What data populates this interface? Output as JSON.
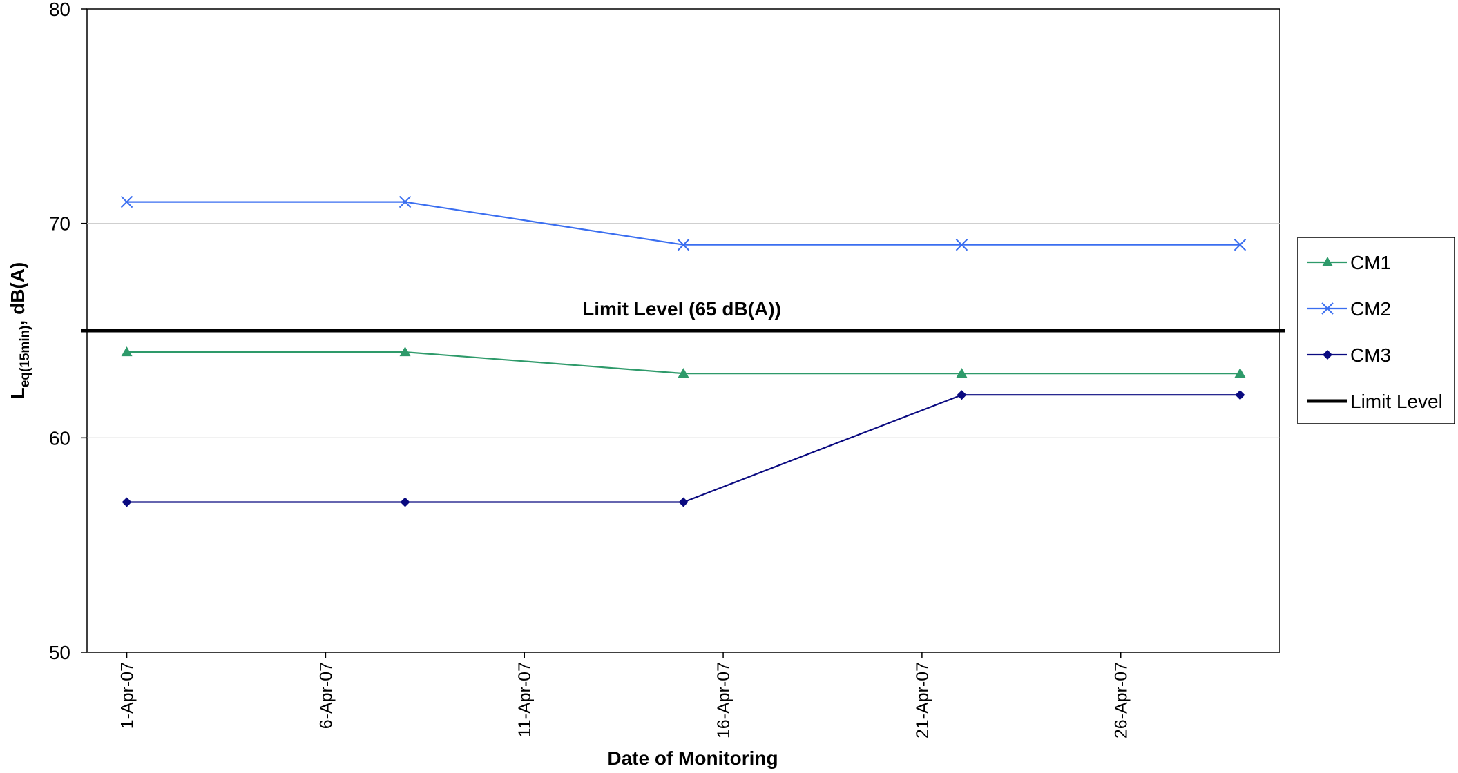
{
  "chart_data": {
    "type": "line",
    "xlabel": "Date of Monitoring",
    "ylabel_main": "L",
    "ylabel_sub": "eq(15min)",
    "ylabel_rest": ", dB(A)",
    "x_dates": [
      "2007-04-01",
      "2007-04-08",
      "2007-04-15",
      "2007-04-22",
      "2007-04-29"
    ],
    "x_ticks": [
      "1-Apr-07",
      "6-Apr-07",
      "11-Apr-07",
      "16-Apr-07",
      "21-Apr-07",
      "26-Apr-07"
    ],
    "x_tick_dates": [
      "2007-04-01",
      "2007-04-06",
      "2007-04-11",
      "2007-04-16",
      "2007-04-21",
      "2007-04-26"
    ],
    "xlim": [
      "2007-03-31",
      "2007-04-30"
    ],
    "ylim": [
      50,
      80
    ],
    "y_ticks": [
      50,
      60,
      70,
      80
    ],
    "gridlines": [
      60,
      70
    ],
    "series": [
      {
        "name": "CM1",
        "color": "#2e9a6a",
        "marker": "triangle",
        "values": [
          64,
          64,
          63,
          63,
          63
        ]
      },
      {
        "name": "CM2",
        "color": "#3a6ef0",
        "marker": "x",
        "values": [
          71,
          71,
          69,
          69,
          69
        ]
      },
      {
        "name": "CM3",
        "color": "#0a0a80",
        "marker": "diamond",
        "values": [
          57,
          57,
          57,
          62,
          62
        ]
      }
    ],
    "limit": {
      "name": "Limit Level",
      "value": 65,
      "color": "#000000"
    },
    "annotation": "Limit Level (65 dB(A))",
    "legend_position": "right"
  }
}
